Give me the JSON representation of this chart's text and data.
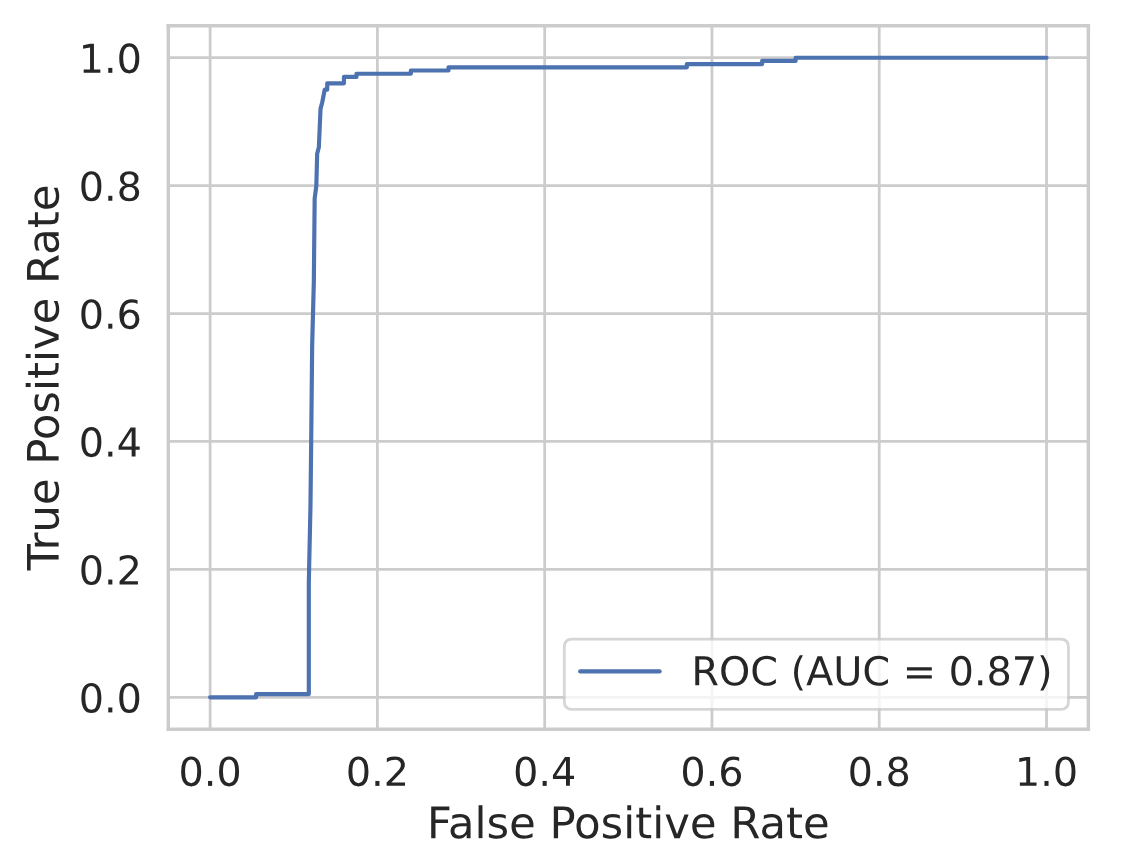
{
  "chart_data": {
    "type": "line",
    "xlabel": "False Positive Rate",
    "ylabel": "True Positive Rate",
    "series": [
      {
        "name": "ROC (AUC = 0.87)",
        "color": "#4c72b0",
        "x": [
          0,
          0.055,
          0.055,
          0.118,
          0.118,
          0.12,
          0.121,
          0.122,
          0.124,
          0.125,
          0.127,
          0.128,
          0.13,
          0.132,
          0.134,
          0.137,
          0.14,
          0.14,
          0.16,
          0.16,
          0.175,
          0.175,
          0.24,
          0.24,
          0.285,
          0.285,
          0.57,
          0.57,
          0.66,
          0.66,
          0.7,
          0.7,
          1.0
        ],
        "values": [
          0,
          0,
          0.005,
          0.005,
          0.18,
          0.3,
          0.42,
          0.55,
          0.65,
          0.78,
          0.8,
          0.85,
          0.86,
          0.92,
          0.93,
          0.95,
          0.95,
          0.96,
          0.96,
          0.97,
          0.97,
          0.975,
          0.975,
          0.98,
          0.98,
          0.985,
          0.985,
          0.99,
          0.99,
          0.995,
          0.995,
          1.0,
          1.0
        ]
      }
    ],
    "xlim": [
      -0.05,
      1.05
    ],
    "ylim": [
      -0.05,
      1.05
    ],
    "xticks": [
      {
        "value": 0,
        "label": "0.0"
      },
      0.2,
      0.4,
      0.6,
      0.8,
      {
        "value": 1,
        "label": "1.0"
      }
    ],
    "yticks": [
      {
        "value": 0,
        "label": "0.0"
      },
      0.2,
      0.4,
      0.6,
      0.8,
      {
        "value": 1,
        "label": "1.0"
      }
    ],
    "grid": true,
    "legend": "lower right",
    "line_style": "solid",
    "marker": "none"
  }
}
